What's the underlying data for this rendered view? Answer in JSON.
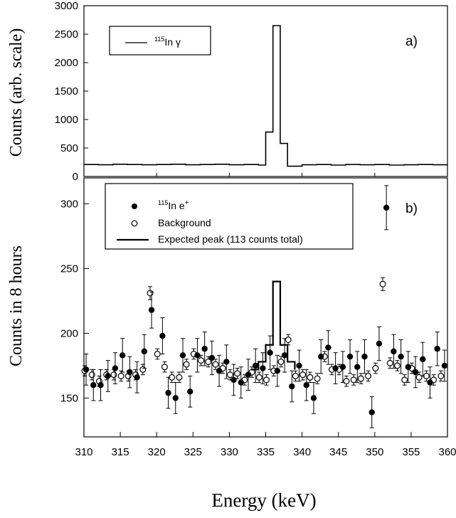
{
  "chart_data": [
    {
      "type": "line",
      "panel_label": "a)",
      "ylabel": "Counts (arb. scale)",
      "ylim": [
        0,
        3000
      ],
      "yticks": [
        0,
        500,
        1000,
        1500,
        2000,
        2500,
        3000
      ],
      "xlim": [
        310,
        360
      ],
      "legend": {
        "position": "top-left",
        "entries": [
          {
            "sup": "115",
            "text": "In γ"
          }
        ]
      },
      "series": [
        {
          "style": "step",
          "x": [
            310,
            312,
            314,
            316,
            318,
            320,
            322,
            324,
            326,
            328,
            330,
            332,
            334,
            335,
            336,
            337,
            338,
            340,
            342,
            344,
            346,
            348,
            350,
            352,
            354,
            356,
            358,
            360
          ],
          "y": [
            210,
            205,
            215,
            210,
            205,
            210,
            215,
            205,
            210,
            215,
            205,
            210,
            200,
            780,
            2650,
            580,
            180,
            205,
            210,
            200,
            210,
            205,
            210,
            200,
            205,
            210,
            205,
            210
          ]
        }
      ]
    },
    {
      "type": "scatter",
      "panel_label": "b)",
      "ylabel": "Counts in 8 hours",
      "xlabel": "Energy (keV)",
      "xlim": [
        310,
        360
      ],
      "ylim": [
        120,
        320
      ],
      "xticks": [
        310,
        315,
        320,
        325,
        330,
        335,
        340,
        345,
        350,
        355,
        360
      ],
      "yticks": [
        150,
        200,
        250,
        300
      ],
      "legend": {
        "position": "top-left",
        "entries": [
          {
            "marker": "filled-circle",
            "sup": "115",
            "text": "In e",
            "sup2": "+"
          },
          {
            "marker": "open-circle",
            "text": "Background"
          },
          {
            "marker": "line",
            "text": "Expected peak (113 counts total)"
          }
        ]
      },
      "series": [
        {
          "marker": "filled-circle",
          "x": [
            310.3,
            311.3,
            312.3,
            313.3,
            314.3,
            315.3,
            316.3,
            317.3,
            318.3,
            319.3,
            320.8,
            321.6,
            322.6,
            323.6,
            324.6,
            325.6,
            326.6,
            327.6,
            328.6,
            329.6,
            330.6,
            331.6,
            332.6,
            333.6,
            334.6,
            335.6,
            336.6,
            337.6,
            338.6,
            339.6,
            340.6,
            341.6,
            342.6,
            343.6,
            344.6,
            345.6,
            346.6,
            347.6,
            348.6,
            349.6,
            350.6,
            351.6,
            352.6,
            353.6,
            354.6,
            355.6,
            356.6,
            357.6,
            358.6,
            359.6
          ],
          "y": [
            172,
            160,
            160,
            167,
            173,
            183,
            170,
            166,
            186,
            218,
            198,
            154,
            150,
            183,
            155,
            183,
            188,
            181,
            171,
            178,
            164,
            162,
            168,
            175,
            173,
            185,
            171,
            183,
            159,
            175,
            160,
            150,
            182,
            189,
            173,
            174,
            182,
            174,
            182,
            139,
            192,
            297,
            186,
            182,
            174,
            170,
            180,
            162,
            188,
            175
          ],
          "err": [
            12,
            12,
            12,
            12,
            12,
            13,
            12,
            12,
            13,
            14,
            14,
            12,
            12,
            13,
            12,
            13,
            13,
            13,
            12,
            13,
            12,
            12,
            12,
            13,
            12,
            13,
            12,
            13,
            12,
            12,
            12,
            12,
            13,
            13,
            12,
            12,
            13,
            12,
            13,
            12,
            13,
            17,
            13,
            13,
            12,
            12,
            13,
            12,
            13,
            12
          ]
        },
        {
          "marker": "open-circle",
          "x": [
            310.1,
            311.1,
            312.1,
            313.1,
            314.1,
            315.1,
            316.1,
            317.1,
            318.1,
            319.1,
            320.1,
            321.1,
            322.1,
            323.1,
            324.1,
            325.1,
            326.1,
            327.1,
            328.1,
            329.1,
            330.1,
            331.1,
            332.1,
            333.1,
            334.1,
            335.1,
            336.1,
            337.1,
            338.1,
            339.1,
            340.1,
            341.1,
            342.1,
            343.1,
            344.1,
            345.1,
            346.1,
            347.1,
            348.1,
            349.1,
            350.1,
            351.1,
            352.1,
            353.1,
            354.1,
            355.1,
            356.1,
            357.1,
            358.1,
            359.1
          ],
          "y": [
            171,
            168,
            163,
            168,
            168,
            167,
            167,
            168,
            172,
            231,
            184,
            174,
            166,
            166,
            176,
            184,
            179,
            178,
            176,
            173,
            168,
            169,
            164,
            170,
            166,
            164,
            171,
            178,
            195,
            167,
            168,
            166,
            165,
            182,
            172,
            172,
            163,
            164,
            165,
            167,
            173,
            238,
            177,
            175,
            164,
            173,
            166,
            167,
            164,
            167
          ],
          "err": [
            4,
            4,
            4,
            4,
            4,
            4,
            4,
            4,
            4,
            5,
            4,
            4,
            4,
            4,
            4,
            4,
            4,
            4,
            4,
            4,
            4,
            4,
            4,
            4,
            4,
            4,
            4,
            4,
            4,
            4,
            4,
            4,
            4,
            4,
            4,
            4,
            4,
            4,
            4,
            4,
            4,
            5,
            4,
            4,
            4,
            4,
            4,
            4,
            4,
            4
          ]
        },
        {
          "style": "step",
          "x": [
            333,
            334,
            335,
            336,
            337,
            338,
            339
          ],
          "y": [
            172,
            178,
            191,
            240,
            191,
            178,
            172
          ]
        }
      ]
    }
  ]
}
